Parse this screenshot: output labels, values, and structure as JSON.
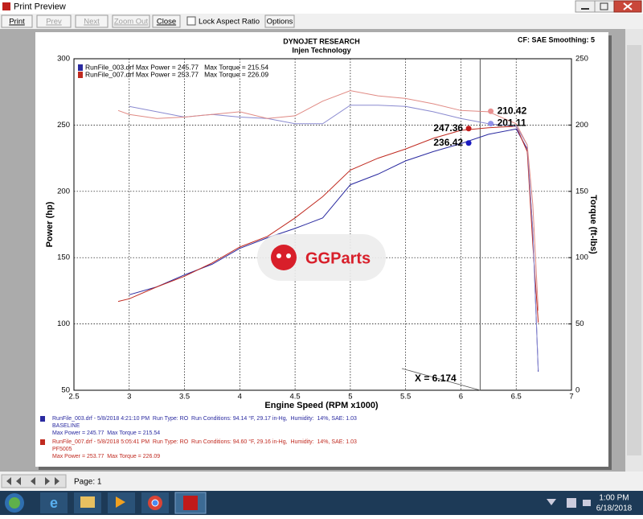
{
  "window": {
    "title": "Print Preview"
  },
  "toolbar": {
    "buttons": [
      {
        "label": "Print",
        "enabled": true
      },
      {
        "label": "Prev",
        "enabled": false
      },
      {
        "label": "Next",
        "enabled": false
      },
      {
        "label": "Zoom Out",
        "enabled": false
      },
      {
        "label": "Close",
        "enabled": true
      }
    ],
    "checkbox": "Lock Aspect Ratio",
    "options": "Options"
  },
  "page_header": {
    "company": "DYNOJET RESEARCH",
    "customer": "Injen Technology",
    "settings": "CF: SAE  Smoothing: 5"
  },
  "chart_data": {
    "type": "line",
    "xlabel": "Engine Speed (RPM x1000)",
    "ylabel": "Power (hp)",
    "y2label": "Torque (ft-lbs)",
    "watermark": "GGParts",
    "xlim": [
      2.5,
      7.0
    ],
    "xticks": [
      2.5,
      3.0,
      3.5,
      4.0,
      4.5,
      5.0,
      5.5,
      6.0,
      6.5,
      7.0
    ],
    "ylim": [
      50,
      300
    ],
    "yticks": [
      50,
      100,
      150,
      200,
      250,
      300
    ],
    "y2lim": [
      0,
      250
    ],
    "y2ticks": [
      0,
      50,
      100,
      150,
      200,
      250
    ],
    "grid": true,
    "x": [
      2.9,
      3.0,
      3.25,
      3.5,
      3.75,
      4.0,
      4.25,
      4.5,
      4.75,
      5.0,
      5.25,
      5.5,
      5.75,
      6.0,
      6.25,
      6.5,
      6.6,
      6.65,
      6.7
    ],
    "series": [
      {
        "name": "RunFile_003.drf Max Power = 245.77   Max Torque = 215.54",
        "color": "#2a2aa0",
        "values": [
          null,
          122,
          128,
          137,
          145,
          157,
          165,
          172,
          180,
          205,
          213,
          223,
          230,
          236,
          243,
          247,
          232,
          170,
          64
        ]
      },
      {
        "name": "RunFile_007.drf Max Power = 253.77   Max Torque = 226.09",
        "color": "#c02a20",
        "values": [
          117,
          119,
          128,
          136,
          146,
          158,
          166,
          180,
          196,
          216,
          225,
          232,
          240,
          246,
          248,
          249,
          230,
          160,
          101
        ]
      },
      {
        "color": "#8a8ad0",
        "axis": "y2",
        "values": [
          null,
          214,
          210,
          206,
          208,
          206,
          205,
          201,
          201,
          215,
          215,
          214,
          210,
          205,
          201,
          199,
          185,
          120,
          15
        ]
      },
      {
        "color": "#e08a84",
        "axis": "y2",
        "values": [
          211,
          208,
          205,
          206,
          208,
          210,
          205,
          207,
          218,
          226,
          222,
          220,
          216,
          211,
          210,
          201,
          185,
          140,
          60
        ]
      }
    ],
    "markers": [
      {
        "x": 6.07,
        "y": 236.42,
        "color": "#1a1ac0"
      },
      {
        "x": 6.07,
        "y": 247.36,
        "color": "#c01a1a"
      },
      {
        "x": 6.27,
        "y": 210.42,
        "color": "#e89090",
        "axis": "y2"
      },
      {
        "x": 6.27,
        "y": 201.11,
        "color": "#9090e8",
        "axis": "y2"
      }
    ],
    "cursor": {
      "value": 6.174,
      "label": "X = 6.174"
    }
  },
  "run_info": [
    {
      "color": "#2a2aa0",
      "lines": [
        "RunFile_003.drf - 5/8/2018 4:21:10 PM  Run Type: RO  Run Conditions: 94.14 °F, 29.17 in-Hg,  Humidity:  14%, SAE: 1.03",
        "BASELINE",
        "Max Power = 245.77  Max Torque = 215.54"
      ]
    },
    {
      "color": "#c02a20",
      "lines": [
        "RunFile_007.drf - 5/8/2018 5:05:41 PM  Run Type: RO  Run Conditions: 94.60 °F, 29.16 in-Hg,  Humidity:  14%, SAE: 1.03",
        "PF5005",
        "Max Power = 253.77  Max Torque = 226.09"
      ]
    }
  ],
  "status": {
    "page": "Page: 1"
  },
  "taskbar": {
    "time": "1:00 PM",
    "date": "6/18/2018"
  }
}
